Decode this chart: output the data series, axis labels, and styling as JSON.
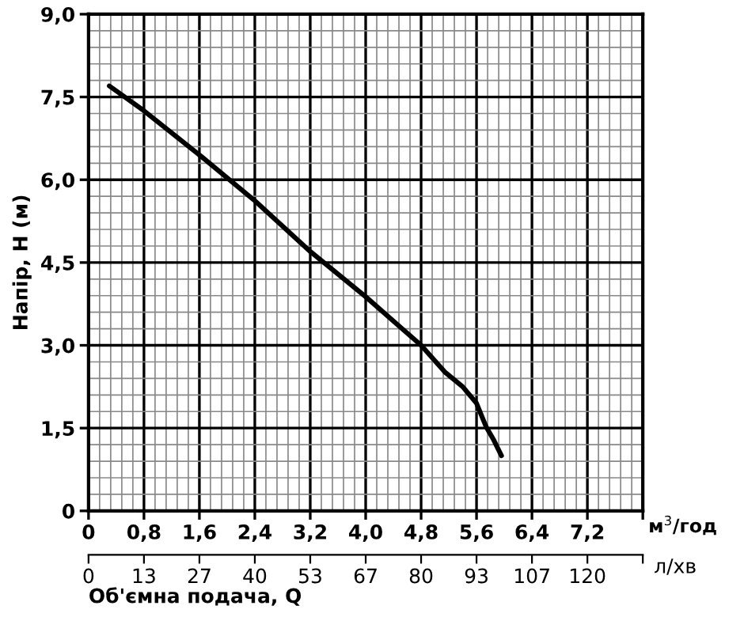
{
  "chart_data": {
    "type": "line",
    "ylabel": "Напір, H (м)",
    "xlabel": "м$^{3}$/год",
    "x2label": "л/хв",
    "annotations": [
      "Об'ємна подача, Q"
    ],
    "series": [
      {
        "color": "#000000",
        "x": [
          0.3,
          0.8,
          1.6,
          2.4,
          3.2,
          4.0,
          4.8,
          5.14,
          5.4,
          5.6,
          5.74,
          5.85,
          5.96
        ],
        "values": [
          7.7,
          7.25,
          6.45,
          5.62,
          4.7,
          3.88,
          3.0,
          2.52,
          2.25,
          1.95,
          1.52,
          1.28,
          1.0
        ]
      }
    ],
    "xlim": [
      0,
      8.0
    ],
    "xticks": [
      0,
      {
        "value": 0.8,
        "label": "0,8"
      },
      {
        "value": 1.6,
        "label": "1,6"
      },
      {
        "value": 2.4,
        "label": "2,4"
      },
      {
        "value": 3.2,
        "label": "3,2"
      },
      {
        "value": 4.0,
        "label": "4,0"
      },
      {
        "value": 4.8,
        "label": "4,8"
      },
      {
        "value": 5.6,
        "label": "5,6"
      },
      {
        "value": 6.4,
        "label": "6,4"
      },
      {
        "value": 7.2,
        "label": "7,2"
      },
      {
        "value": 8.0,
        "label": null
      }
    ],
    "ylim": [
      0,
      9.0
    ],
    "yticks": [
      0,
      {
        "value": 1.5,
        "label": "1,5"
      },
      {
        "value": 3.0,
        "label": "3,0"
      },
      {
        "value": 4.5,
        "label": "4,5"
      },
      {
        "value": 6.0,
        "label": "6,0"
      },
      {
        "value": 7.5,
        "label": "7,5"
      },
      {
        "value": 9.0,
        "label": "9,0"
      }
    ],
    "x2lim": [
      0,
      133.33
    ],
    "x2ticks": [
      0,
      {
        "value": 13.33,
        "label": "13"
      },
      {
        "value": 26.67,
        "label": "27"
      },
      40,
      {
        "value": 53.33,
        "label": "53"
      },
      {
        "value": 66.67,
        "label": "67"
      },
      80,
      {
        "value": 93.33,
        "label": "93"
      },
      {
        "value": 106.67,
        "label": "107"
      },
      120,
      {
        "value": 133.33,
        "label": null
      }
    ],
    "grid": true,
    "marker": "none",
    "line_style": "solid"
  }
}
